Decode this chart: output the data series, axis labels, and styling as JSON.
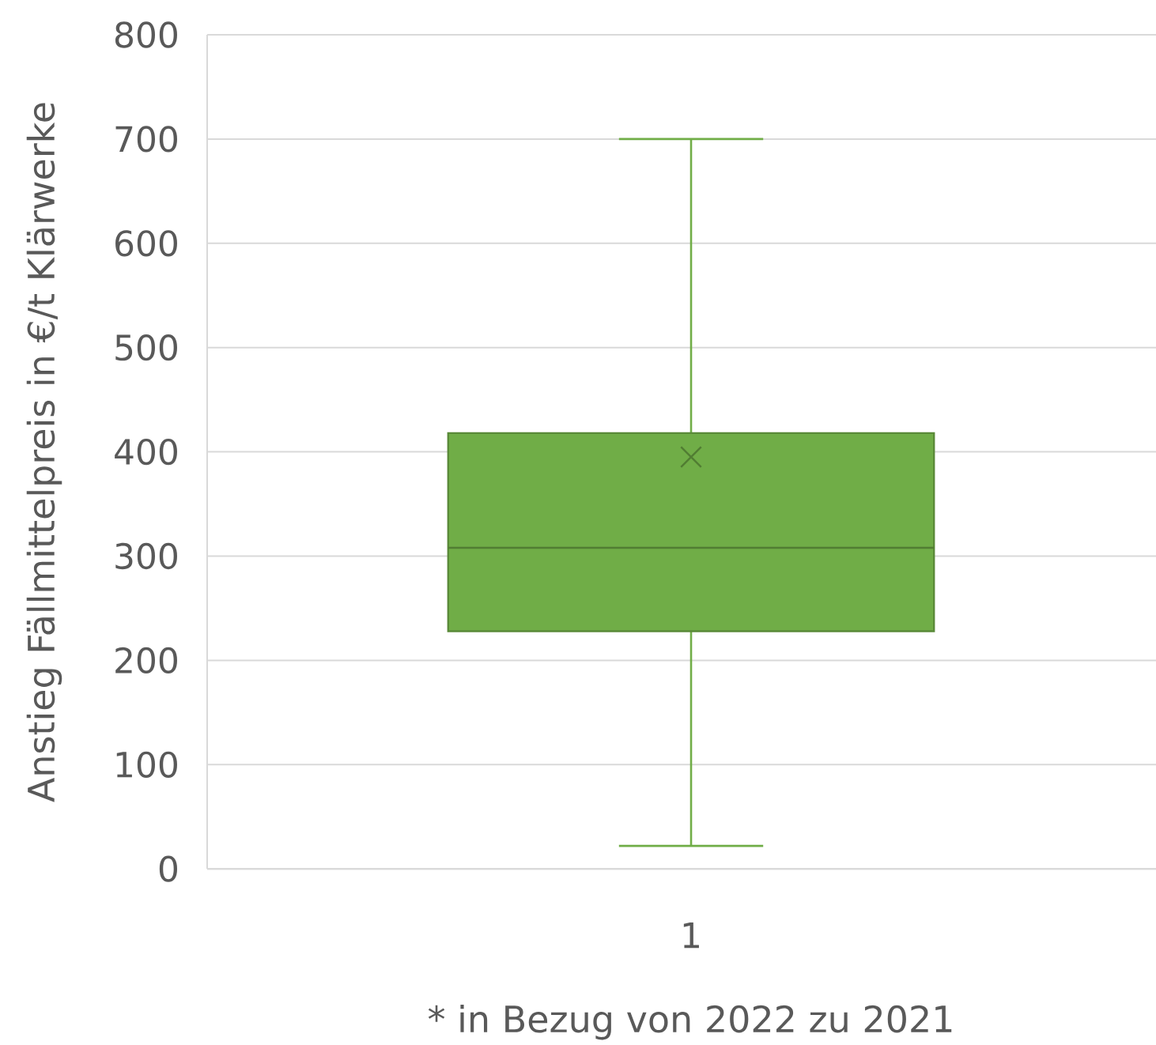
{
  "chart_data": {
    "type": "box",
    "ylabel": "Anstieg Fällmittelpreis in €/t Klärwerke",
    "xlabel": "* in Bezug von 2022 zu 2021",
    "categories": [
      "1"
    ],
    "boxes": [
      {
        "low": 22,
        "q1": 228,
        "median": 308,
        "q3": 418,
        "high": 700,
        "mean": 395
      }
    ],
    "color": "#70ad47",
    "ylim": [
      0,
      800
    ],
    "yticks": [
      0,
      100,
      200,
      300,
      400,
      500,
      600,
      700,
      800
    ],
    "grid": "y"
  }
}
